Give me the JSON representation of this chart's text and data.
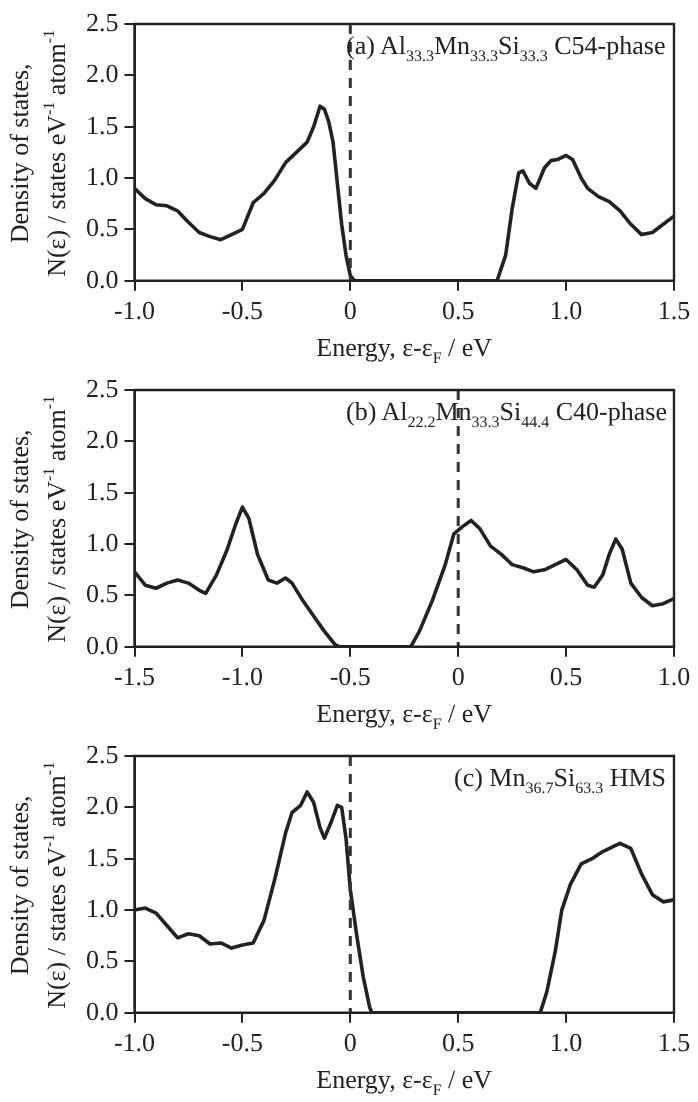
{
  "chart_data": [
    {
      "type": "line",
      "xlabel": "Energy, ε-ε$_{F}$ / eV",
      "ylabel": "Density of states,\nN(ε) / states eV$^{-1}$ atom$^{-1}$",
      "annotations": [
        "(a) Al$_{33.3}$Mn$_{33.3}$Si$_{33.3}$ C54-phase"
      ],
      "grid": false,
      "marker": "none",
      "line_style": "solid",
      "xlim": [
        -1,
        1.5
      ],
      "xticks": [
        {
          "value": -1,
          "label": "-1.0"
        },
        {
          "value": -0.5,
          "label": "-0.5"
        },
        0,
        0.5,
        {
          "value": 1,
          "label": "1.0"
        },
        1.5
      ],
      "ylim": [
        0,
        2.5
      ],
      "yticks": [
        {
          "value": 0,
          "label": "0.0"
        },
        0.5,
        {
          "value": 1,
          "label": "1.0"
        },
        1.5,
        {
          "value": 2,
          "label": "2.0"
        },
        2.5
      ],
      "ref_lines": [
        {
          "axis": "x",
          "value": 0,
          "line_style": "dashed",
          "color": "#333333"
        }
      ],
      "series": [
        {
          "color": "#222222",
          "x": [
            -1,
            -0.95,
            -0.9,
            -0.85,
            -0.8,
            -0.75,
            -0.7,
            -0.65,
            -0.6,
            -0.55,
            -0.5,
            -0.45,
            -0.4,
            -0.35,
            -0.3,
            -0.25,
            -0.2,
            -0.17,
            -0.14,
            -0.12,
            -0.1,
            -0.08,
            -0.06,
            -0.04,
            -0.02,
            0,
            0.02,
            0.3,
            0.68,
            0.72,
            0.75,
            0.78,
            0.8,
            0.83,
            0.86,
            0.9,
            0.93,
            0.96,
            1,
            1.03,
            1.07,
            1.1,
            1.15,
            1.2,
            1.25,
            1.3,
            1.35,
            1.4,
            1.45,
            1.5
          ],
          "values": [
            0.9,
            0.8,
            0.74,
            0.73,
            0.68,
            0.57,
            0.47,
            0.43,
            0.4,
            0.45,
            0.5,
            0.76,
            0.85,
            0.98,
            1.15,
            1.25,
            1.35,
            1.5,
            1.7,
            1.67,
            1.55,
            1.35,
            0.95,
            0.55,
            0.25,
            0.05,
            0,
            0,
            0,
            0.25,
            0.7,
            1.05,
            1.07,
            0.95,
            0.9,
            1.1,
            1.17,
            1.18,
            1.22,
            1.18,
            1,
            0.9,
            0.82,
            0.77,
            0.68,
            0.55,
            0.45,
            0.47,
            0.55,
            0.63
          ]
        }
      ]
    },
    {
      "type": "line",
      "xlabel": "Energy, ε-ε$_{F}$ / eV",
      "ylabel": "Density of states,\nN(ε) / states eV$^{-1}$ atom$^{-1}$",
      "annotations": [
        "(b) Al$_{22.2}$Mn$_{33.3}$Si$_{44.4}$ C40-phase"
      ],
      "grid": false,
      "marker": "none",
      "line_style": "solid",
      "xlim": [
        -1.5,
        1
      ],
      "xticks": [
        {
          "value": -1.5,
          "label": "-1.5"
        },
        {
          "value": -1,
          "label": "-1.0"
        },
        {
          "value": -0.5,
          "label": "-0.5"
        },
        0,
        0.5,
        {
          "value": 1,
          "label": "1.0"
        }
      ],
      "ylim": [
        0,
        2.5
      ],
      "yticks": [
        {
          "value": 0,
          "label": "0.0"
        },
        0.5,
        {
          "value": 1,
          "label": "1.0"
        },
        1.5,
        {
          "value": 2,
          "label": "2.0"
        },
        2.5
      ],
      "ref_lines": [
        {
          "axis": "x",
          "value": 0,
          "line_style": "dashed",
          "color": "#333333"
        }
      ],
      "series": [
        {
          "color": "#222222",
          "x": [
            -1.5,
            -1.45,
            -1.4,
            -1.35,
            -1.3,
            -1.25,
            -1.2,
            -1.17,
            -1.12,
            -1.07,
            -1.03,
            -1,
            -0.97,
            -0.93,
            -0.88,
            -0.84,
            -0.8,
            -0.77,
            -0.72,
            -0.67,
            -0.62,
            -0.57,
            -0.55,
            -0.22,
            -0.18,
            -0.12,
            -0.06,
            -0.02,
            0.02,
            0.06,
            0.1,
            0.15,
            0.2,
            0.25,
            0.3,
            0.35,
            0.4,
            0.45,
            0.5,
            0.55,
            0.6,
            0.63,
            0.67,
            0.7,
            0.73,
            0.76,
            0.8,
            0.85,
            0.9,
            0.95,
            1
          ],
          "values": [
            0.73,
            0.6,
            0.57,
            0.62,
            0.65,
            0.62,
            0.55,
            0.52,
            0.7,
            0.95,
            1.2,
            1.36,
            1.25,
            0.9,
            0.65,
            0.62,
            0.67,
            0.62,
            0.45,
            0.3,
            0.15,
            0.02,
            0,
            0,
            0.15,
            0.45,
            0.8,
            1.1,
            1.17,
            1.23,
            1.15,
            0.98,
            0.9,
            0.8,
            0.77,
            0.73,
            0.75,
            0.8,
            0.85,
            0.75,
            0.6,
            0.58,
            0.7,
            0.9,
            1.05,
            0.95,
            0.62,
            0.48,
            0.4,
            0.42,
            0.47
          ]
        }
      ]
    },
    {
      "type": "line",
      "xlabel": "Energy, ε-ε$_{F}$ / eV",
      "ylabel": "Density of states,\nN(ε) / states eV$^{-1}$ atom$^{-1}$",
      "annotations": [
        "(c) Mn$_{36.7}$Si$_{63.3}$ HMS"
      ],
      "grid": false,
      "marker": "none",
      "line_style": "solid",
      "xlim": [
        -1,
        1.5
      ],
      "xticks": [
        {
          "value": -1,
          "label": "-1.0"
        },
        {
          "value": -0.5,
          "label": "-0.5"
        },
        0,
        0.5,
        {
          "value": 1,
          "label": "1.0"
        },
        1.5
      ],
      "ylim": [
        0,
        2.5
      ],
      "yticks": [
        {
          "value": 0,
          "label": "0.0"
        },
        0.5,
        {
          "value": 1,
          "label": "1.0"
        },
        1.5,
        {
          "value": 2,
          "label": "2.0"
        },
        2.5
      ],
      "ref_lines": [
        {
          "axis": "x",
          "value": 0,
          "line_style": "dashed",
          "color": "#333333"
        }
      ],
      "series": [
        {
          "color": "#222222",
          "x": [
            -1,
            -0.95,
            -0.9,
            -0.85,
            -0.8,
            -0.75,
            -0.7,
            -0.65,
            -0.6,
            -0.55,
            -0.5,
            -0.45,
            -0.4,
            -0.35,
            -0.3,
            -0.27,
            -0.23,
            -0.2,
            -0.17,
            -0.14,
            -0.12,
            -0.09,
            -0.06,
            -0.04,
            -0.02,
            0,
            0.03,
            0.06,
            0.09,
            0.1,
            0.88,
            0.91,
            0.95,
            0.98,
            1.02,
            1.07,
            1.12,
            1.17,
            1.22,
            1.25,
            1.3,
            1.35,
            1.4,
            1.45,
            1.5
          ],
          "values": [
            1,
            1.02,
            0.97,
            0.85,
            0.73,
            0.77,
            0.75,
            0.67,
            0.68,
            0.63,
            0.66,
            0.68,
            0.9,
            1.3,
            1.75,
            1.95,
            2.02,
            2.15,
            2.05,
            1.8,
            1.7,
            1.85,
            2.02,
            2,
            1.7,
            1.2,
            0.75,
            0.35,
            0.05,
            0,
            0,
            0.2,
            0.6,
            1,
            1.25,
            1.45,
            1.5,
            1.57,
            1.62,
            1.65,
            1.6,
            1.35,
            1.15,
            1.08,
            1.1
          ]
        }
      ]
    }
  ]
}
